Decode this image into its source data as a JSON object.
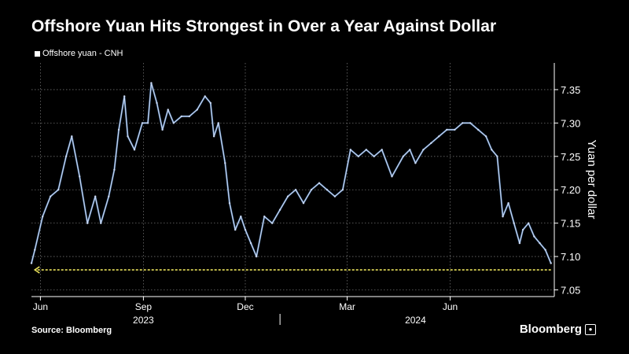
{
  "header": {
    "title": "Offshore Yuan Hits Strongest in Over a Year Against Dollar"
  },
  "footer": {
    "source": "Source: Bloomberg",
    "brand": "Bloomberg"
  },
  "colors": {
    "background": "#000000",
    "line": "#c9d6ef",
    "line_alt": "#4f86c6",
    "marker": "#e8e05a",
    "grid": "#6e6e6e"
  },
  "chart_data": {
    "type": "line",
    "title": "Offshore Yuan Hits Strongest in Over a Year Against Dollar",
    "ylabel": "Yuan per dollar",
    "y_axis_position": "right",
    "ylim": [
      7.04,
      7.39
    ],
    "yticks": [
      7.05,
      7.1,
      7.15,
      7.2,
      7.25,
      7.3,
      7.35
    ],
    "ytick_labels": [
      "7.05",
      "7.10",
      "7.15",
      "7.20",
      "7.25",
      "7.30",
      "7.35"
    ],
    "xlim": [
      "2023-05-24",
      "2024-09-02"
    ],
    "xticks": [
      {
        "label": "Jun",
        "date": "2023-06-01"
      },
      {
        "label": "Sep",
        "date": "2023-09-01"
      },
      {
        "label": "Dec",
        "date": "2023-12-01"
      },
      {
        "label": "Mar",
        "date": "2024-03-01"
      },
      {
        "label": "Jun",
        "date": "2024-06-01"
      }
    ],
    "year_labels": [
      {
        "label": "2023",
        "date": "2023-09-01"
      },
      {
        "label": "2024",
        "date": "2024-05-01"
      }
    ],
    "year_divider": "2024-01-01",
    "grid": true,
    "legend": "top-left",
    "series": [
      {
        "name": "Offshore yuan - CNH",
        "x": [
          "2023-05-24",
          "2023-05-27",
          "2023-06-03",
          "2023-06-10",
          "2023-06-17",
          "2023-06-24",
          "2023-06-29",
          "2023-07-06",
          "2023-07-13",
          "2023-07-20",
          "2023-07-25",
          "2023-08-01",
          "2023-08-06",
          "2023-08-10",
          "2023-08-15",
          "2023-08-18",
          "2023-08-24",
          "2023-08-31",
          "2023-09-05",
          "2023-09-08",
          "2023-09-13",
          "2023-09-18",
          "2023-09-23",
          "2023-09-28",
          "2023-10-05",
          "2023-10-12",
          "2023-10-19",
          "2023-10-26",
          "2023-10-31",
          "2023-11-03",
          "2023-11-07",
          "2023-11-13",
          "2023-11-17",
          "2023-11-22",
          "2023-11-27",
          "2023-12-01",
          "2023-12-06",
          "2023-12-11",
          "2023-12-18",
          "2023-12-25",
          "2024-01-01",
          "2024-01-08",
          "2024-01-15",
          "2024-01-22",
          "2024-01-29",
          "2024-02-05",
          "2024-02-12",
          "2024-02-19",
          "2024-02-26",
          "2024-03-04",
          "2024-03-11",
          "2024-03-18",
          "2024-03-25",
          "2024-04-01",
          "2024-04-10",
          "2024-04-20",
          "2024-04-26",
          "2024-05-01",
          "2024-05-08",
          "2024-05-15",
          "2024-05-22",
          "2024-05-29",
          "2024-06-05",
          "2024-06-12",
          "2024-06-19",
          "2024-06-26",
          "2024-07-03",
          "2024-07-08",
          "2024-07-13",
          "2024-07-18",
          "2024-07-23",
          "2024-07-28",
          "2024-08-02",
          "2024-08-05",
          "2024-08-10",
          "2024-08-15",
          "2024-08-20",
          "2024-08-25",
          "2024-08-30"
        ],
        "values": [
          7.09,
          7.11,
          7.16,
          7.19,
          7.2,
          7.25,
          7.28,
          7.22,
          7.15,
          7.19,
          7.15,
          7.19,
          7.23,
          7.29,
          7.34,
          7.28,
          7.26,
          7.3,
          7.3,
          7.36,
          7.33,
          7.29,
          7.32,
          7.3,
          7.31,
          7.31,
          7.32,
          7.34,
          7.33,
          7.28,
          7.3,
          7.24,
          7.18,
          7.14,
          7.16,
          7.14,
          7.12,
          7.1,
          7.16,
          7.15,
          7.17,
          7.19,
          7.2,
          7.18,
          7.2,
          7.21,
          7.2,
          7.19,
          7.2,
          7.26,
          7.25,
          7.26,
          7.25,
          7.26,
          7.22,
          7.25,
          7.26,
          7.24,
          7.26,
          7.27,
          7.28,
          7.29,
          7.29,
          7.3,
          7.3,
          7.29,
          7.28,
          7.26,
          7.25,
          7.16,
          7.18,
          7.15,
          7.12,
          7.14,
          7.15,
          7.13,
          7.12,
          7.11,
          7.09
        ]
      }
    ],
    "annotations": [
      {
        "type": "dashed-arrow",
        "y": 7.08,
        "x_from": "2024-08-30",
        "x_to": "2023-05-27",
        "color": "#e8e05a"
      }
    ]
  }
}
